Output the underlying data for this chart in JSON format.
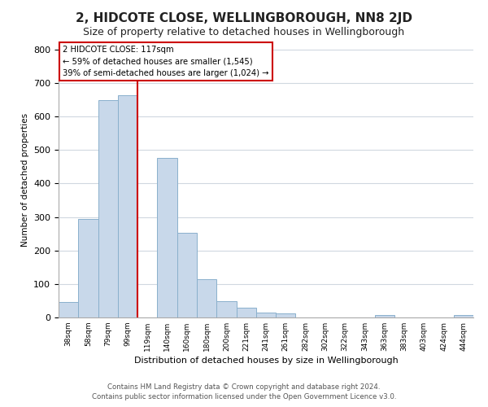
{
  "title": "2, HIDCOTE CLOSE, WELLINGBOROUGH, NN8 2JD",
  "subtitle": "Size of property relative to detached houses in Wellingborough",
  "xlabel": "Distribution of detached houses by size in Wellingborough",
  "ylabel": "Number of detached properties",
  "bar_labels": [
    "38sqm",
    "58sqm",
    "79sqm",
    "99sqm",
    "119sqm",
    "140sqm",
    "160sqm",
    "180sqm",
    "200sqm",
    "221sqm",
    "241sqm",
    "261sqm",
    "282sqm",
    "302sqm",
    "322sqm",
    "343sqm",
    "363sqm",
    "383sqm",
    "403sqm",
    "424sqm",
    "444sqm"
  ],
  "bar_values": [
    47,
    295,
    648,
    663,
    0,
    477,
    253,
    113,
    48,
    28,
    15,
    13,
    0,
    0,
    0,
    0,
    8,
    0,
    0,
    0,
    7
  ],
  "bar_color": "#c8d8ea",
  "bar_edge_color": "#8ab0cc",
  "vline_x": 4,
  "vline_color": "#cc0000",
  "annotation_title": "2 HIDCOTE CLOSE: 117sqm",
  "annotation_line1": "← 59% of detached houses are smaller (1,545)",
  "annotation_line2": "39% of semi-detached houses are larger (1,024) →",
  "annotation_box_color": "#ffffff",
  "annotation_box_edge": "#cc0000",
  "ylim": [
    0,
    820
  ],
  "footer_line1": "Contains HM Land Registry data © Crown copyright and database right 2024.",
  "footer_line2": "Contains public sector information licensed under the Open Government Licence v3.0.",
  "bg_color": "#ffffff",
  "grid_color": "#d0d8e0",
  "title_fontsize": 11,
  "subtitle_fontsize": 9,
  "label_fontsize": 8
}
